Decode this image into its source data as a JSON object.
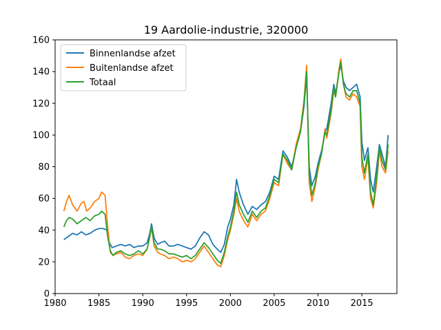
{
  "chart_data": {
    "type": "line",
    "title": "19 Aardolie-industrie, 320000",
    "xlabel": "",
    "ylabel": "",
    "xlim": [
      1980,
      2019
    ],
    "ylim": [
      0,
      160
    ],
    "xticks": [
      1980,
      1985,
      1990,
      1995,
      2000,
      2005,
      2010,
      2015
    ],
    "yticks": [
      0,
      20,
      40,
      60,
      80,
      100,
      120,
      140,
      160
    ],
    "grid": false,
    "legend_position": "top-left",
    "series": [
      {
        "name": "Binnenlandse afzet",
        "color": "#1f77b4",
        "points": [
          [
            1981.0,
            34
          ],
          [
            1981.5,
            36
          ],
          [
            1982.0,
            38
          ],
          [
            1982.5,
            37
          ],
          [
            1983.0,
            39
          ],
          [
            1983.5,
            37
          ],
          [
            1984.0,
            38
          ],
          [
            1984.5,
            40
          ],
          [
            1985.0,
            41
          ],
          [
            1985.5,
            41
          ],
          [
            1985.9,
            40
          ],
          [
            1986.1,
            33
          ],
          [
            1986.5,
            29
          ],
          [
            1987.0,
            30
          ],
          [
            1987.5,
            31
          ],
          [
            1988.0,
            30
          ],
          [
            1988.5,
            31
          ],
          [
            1989.0,
            29
          ],
          [
            1989.5,
            30
          ],
          [
            1990.0,
            30
          ],
          [
            1990.5,
            32
          ],
          [
            1990.8,
            38
          ],
          [
            1991.0,
            44
          ],
          [
            1991.3,
            35
          ],
          [
            1991.7,
            31
          ],
          [
            1992.0,
            32
          ],
          [
            1992.5,
            33
          ],
          [
            1993.0,
            30
          ],
          [
            1993.5,
            30
          ],
          [
            1994.0,
            31
          ],
          [
            1994.5,
            30
          ],
          [
            1995.0,
            29
          ],
          [
            1995.5,
            28
          ],
          [
            1996.0,
            30
          ],
          [
            1996.5,
            35
          ],
          [
            1997.0,
            39
          ],
          [
            1997.5,
            37
          ],
          [
            1998.0,
            31
          ],
          [
            1998.5,
            28
          ],
          [
            1998.9,
            26
          ],
          [
            1999.3,
            31
          ],
          [
            1999.7,
            42
          ],
          [
            2000.0,
            47
          ],
          [
            2000.4,
            56
          ],
          [
            2000.7,
            72
          ],
          [
            2001.0,
            64
          ],
          [
            2001.5,
            56
          ],
          [
            2002.0,
            50
          ],
          [
            2002.5,
            55
          ],
          [
            2003.0,
            53
          ],
          [
            2003.5,
            56
          ],
          [
            2004.0,
            58
          ],
          [
            2004.5,
            64
          ],
          [
            2005.0,
            74
          ],
          [
            2005.5,
            72
          ],
          [
            2006.0,
            90
          ],
          [
            2006.5,
            86
          ],
          [
            2007.0,
            80
          ],
          [
            2007.5,
            92
          ],
          [
            2008.0,
            102
          ],
          [
            2008.4,
            118
          ],
          [
            2008.7,
            138
          ],
          [
            2009.0,
            80
          ],
          [
            2009.3,
            68
          ],
          [
            2009.7,
            74
          ],
          [
            2010.0,
            82
          ],
          [
            2010.4,
            90
          ],
          [
            2010.8,
            102
          ],
          [
            2011.0,
            104
          ],
          [
            2011.5,
            120
          ],
          [
            2011.8,
            132
          ],
          [
            2012.0,
            126
          ],
          [
            2012.4,
            140
          ],
          [
            2012.6,
            144
          ],
          [
            2012.9,
            134
          ],
          [
            2013.2,
            130
          ],
          [
            2013.6,
            128
          ],
          [
            2014.0,
            130
          ],
          [
            2014.4,
            132
          ],
          [
            2014.8,
            124
          ],
          [
            2015.0,
            96
          ],
          [
            2015.3,
            84
          ],
          [
            2015.7,
            92
          ],
          [
            2016.0,
            72
          ],
          [
            2016.3,
            64
          ],
          [
            2016.7,
            80
          ],
          [
            2017.0,
            94
          ],
          [
            2017.3,
            88
          ],
          [
            2017.7,
            80
          ],
          [
            2018.0,
            100
          ]
        ]
      },
      {
        "name": "Buitenlandse afzet",
        "color": "#ff7f0e",
        "points": [
          [
            1981.0,
            52
          ],
          [
            1981.3,
            58
          ],
          [
            1981.6,
            62
          ],
          [
            1982.0,
            56
          ],
          [
            1982.5,
            52
          ],
          [
            1983.0,
            57
          ],
          [
            1983.3,
            58
          ],
          [
            1983.6,
            52
          ],
          [
            1984.0,
            54
          ],
          [
            1984.5,
            58
          ],
          [
            1985.0,
            60
          ],
          [
            1985.3,
            64
          ],
          [
            1985.7,
            62
          ],
          [
            1986.0,
            42
          ],
          [
            1986.3,
            26
          ],
          [
            1986.6,
            24
          ],
          [
            1987.0,
            25
          ],
          [
            1987.5,
            26
          ],
          [
            1988.0,
            23
          ],
          [
            1988.5,
            22
          ],
          [
            1989.0,
            24
          ],
          [
            1989.5,
            25
          ],
          [
            1990.0,
            24
          ],
          [
            1990.5,
            28
          ],
          [
            1990.8,
            36
          ],
          [
            1991.0,
            42
          ],
          [
            1991.3,
            30
          ],
          [
            1991.7,
            26
          ],
          [
            1992.0,
            25
          ],
          [
            1992.5,
            24
          ],
          [
            1993.0,
            22
          ],
          [
            1993.5,
            23
          ],
          [
            1994.0,
            22
          ],
          [
            1994.5,
            20
          ],
          [
            1995.0,
            21
          ],
          [
            1995.5,
            20
          ],
          [
            1996.0,
            22
          ],
          [
            1996.5,
            26
          ],
          [
            1997.0,
            30
          ],
          [
            1997.5,
            26
          ],
          [
            1998.0,
            22
          ],
          [
            1998.5,
            18
          ],
          [
            1998.9,
            17
          ],
          [
            1999.3,
            24
          ],
          [
            1999.7,
            34
          ],
          [
            2000.0,
            40
          ],
          [
            2000.4,
            50
          ],
          [
            2000.7,
            60
          ],
          [
            2001.0,
            52
          ],
          [
            2001.5,
            46
          ],
          [
            2002.0,
            42
          ],
          [
            2002.5,
            50
          ],
          [
            2003.0,
            46
          ],
          [
            2003.5,
            50
          ],
          [
            2004.0,
            52
          ],
          [
            2004.5,
            60
          ],
          [
            2005.0,
            70
          ],
          [
            2005.5,
            68
          ],
          [
            2006.0,
            88
          ],
          [
            2006.5,
            82
          ],
          [
            2007.0,
            78
          ],
          [
            2007.5,
            94
          ],
          [
            2008.0,
            104
          ],
          [
            2008.4,
            122
          ],
          [
            2008.7,
            144
          ],
          [
            2009.0,
            70
          ],
          [
            2009.3,
            58
          ],
          [
            2009.7,
            68
          ],
          [
            2010.0,
            78
          ],
          [
            2010.4,
            88
          ],
          [
            2010.8,
            104
          ],
          [
            2011.0,
            98
          ],
          [
            2011.5,
            114
          ],
          [
            2011.8,
            128
          ],
          [
            2012.0,
            124
          ],
          [
            2012.4,
            142
          ],
          [
            2012.6,
            148
          ],
          [
            2012.9,
            132
          ],
          [
            2013.2,
            124
          ],
          [
            2013.6,
            122
          ],
          [
            2014.0,
            126
          ],
          [
            2014.4,
            124
          ],
          [
            2014.8,
            118
          ],
          [
            2015.0,
            80
          ],
          [
            2015.3,
            72
          ],
          [
            2015.7,
            86
          ],
          [
            2016.0,
            60
          ],
          [
            2016.3,
            54
          ],
          [
            2016.7,
            70
          ],
          [
            2017.0,
            90
          ],
          [
            2017.3,
            80
          ],
          [
            2017.7,
            76
          ],
          [
            2018.0,
            90
          ]
        ]
      },
      {
        "name": "Totaal",
        "color": "#2ca02c",
        "points": [
          [
            1981.0,
            42
          ],
          [
            1981.3,
            46
          ],
          [
            1981.6,
            48
          ],
          [
            1982.0,
            47
          ],
          [
            1982.5,
            44
          ],
          [
            1983.0,
            46
          ],
          [
            1983.5,
            48
          ],
          [
            1984.0,
            46
          ],
          [
            1984.5,
            49
          ],
          [
            1985.0,
            50
          ],
          [
            1985.3,
            52
          ],
          [
            1985.7,
            50
          ],
          [
            1986.0,
            36
          ],
          [
            1986.3,
            27
          ],
          [
            1986.6,
            24
          ],
          [
            1987.0,
            26
          ],
          [
            1987.5,
            27
          ],
          [
            1988.0,
            25
          ],
          [
            1988.5,
            24
          ],
          [
            1989.0,
            25
          ],
          [
            1989.5,
            27
          ],
          [
            1990.0,
            25
          ],
          [
            1990.5,
            28
          ],
          [
            1990.8,
            36
          ],
          [
            1991.0,
            42
          ],
          [
            1991.3,
            32
          ],
          [
            1991.7,
            28
          ],
          [
            1992.0,
            28
          ],
          [
            1992.5,
            27
          ],
          [
            1993.0,
            25
          ],
          [
            1993.5,
            25
          ],
          [
            1994.0,
            24
          ],
          [
            1994.5,
            23
          ],
          [
            1995.0,
            24
          ],
          [
            1995.5,
            22
          ],
          [
            1996.0,
            24
          ],
          [
            1996.5,
            28
          ],
          [
            1997.0,
            32
          ],
          [
            1997.5,
            29
          ],
          [
            1998.0,
            25
          ],
          [
            1998.5,
            21
          ],
          [
            1998.9,
            19
          ],
          [
            1999.3,
            26
          ],
          [
            1999.7,
            36
          ],
          [
            2000.0,
            42
          ],
          [
            2000.4,
            52
          ],
          [
            2000.7,
            64
          ],
          [
            2001.0,
            56
          ],
          [
            2001.5,
            50
          ],
          [
            2002.0,
            45
          ],
          [
            2002.5,
            52
          ],
          [
            2003.0,
            48
          ],
          [
            2003.5,
            52
          ],
          [
            2004.0,
            54
          ],
          [
            2004.5,
            62
          ],
          [
            2005.0,
            72
          ],
          [
            2005.5,
            70
          ],
          [
            2006.0,
            88
          ],
          [
            2006.5,
            84
          ],
          [
            2007.0,
            78
          ],
          [
            2007.5,
            92
          ],
          [
            2008.0,
            102
          ],
          [
            2008.4,
            120
          ],
          [
            2008.7,
            140
          ],
          [
            2009.0,
            74
          ],
          [
            2009.3,
            62
          ],
          [
            2009.7,
            70
          ],
          [
            2010.0,
            80
          ],
          [
            2010.4,
            88
          ],
          [
            2010.8,
            102
          ],
          [
            2011.0,
            100
          ],
          [
            2011.5,
            116
          ],
          [
            2011.8,
            130
          ],
          [
            2012.0,
            124
          ],
          [
            2012.4,
            140
          ],
          [
            2012.6,
            146
          ],
          [
            2012.9,
            132
          ],
          [
            2013.2,
            126
          ],
          [
            2013.6,
            124
          ],
          [
            2014.0,
            128
          ],
          [
            2014.4,
            128
          ],
          [
            2014.8,
            120
          ],
          [
            2015.0,
            86
          ],
          [
            2015.3,
            76
          ],
          [
            2015.7,
            88
          ],
          [
            2016.0,
            64
          ],
          [
            2016.3,
            56
          ],
          [
            2016.7,
            74
          ],
          [
            2017.0,
            92
          ],
          [
            2017.3,
            84
          ],
          [
            2017.7,
            78
          ],
          [
            2018.0,
            94
          ]
        ]
      }
    ]
  }
}
